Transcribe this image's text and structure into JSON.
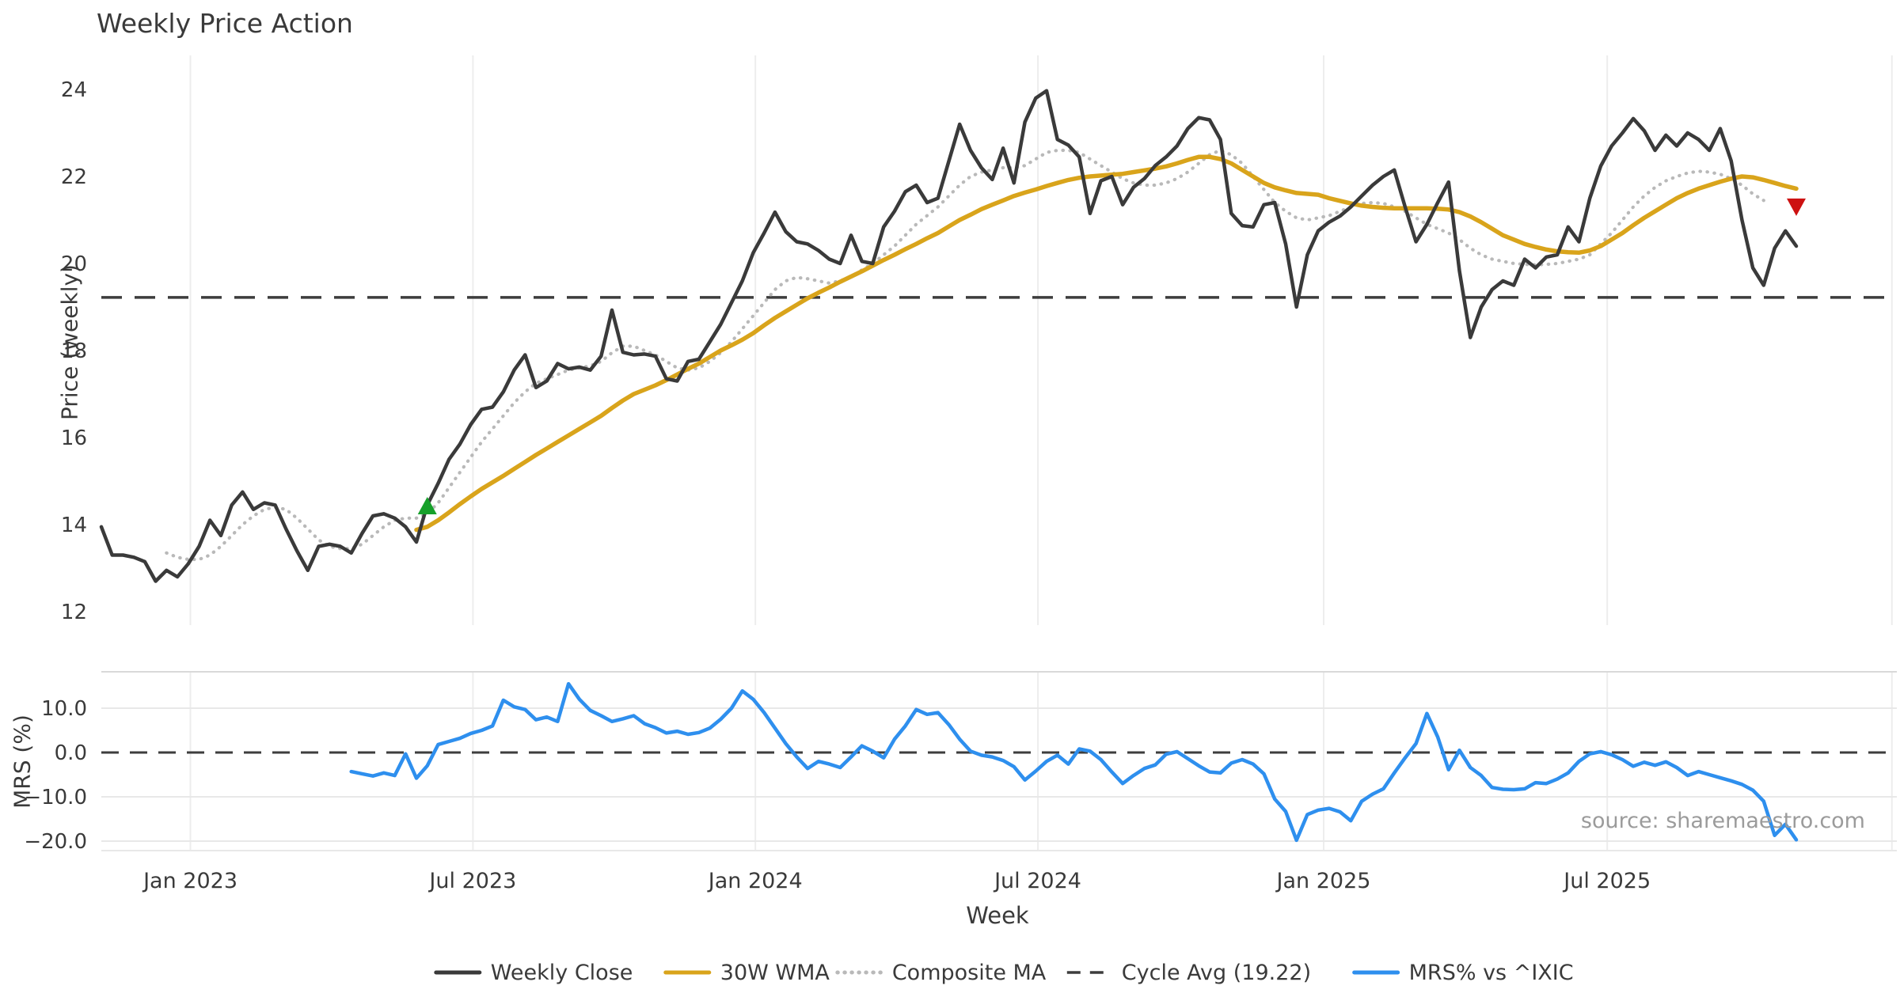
{
  "page_title": "Weekly Price Action",
  "source_note": "source: sharemaestro.com",
  "chart_data": {
    "type": "line",
    "title": "Weekly Price Action",
    "xlabel": "Week",
    "grid": "vertical-both-panels, horizontal-bottom-panel-only",
    "legend_position": "bottom-center",
    "x_axis": {
      "tick_labels": [
        "Jan 2023",
        "Jul 2023",
        "Jan 2024",
        "Jul 2024",
        "Jan 2025",
        "Jul 2025"
      ],
      "tick_week_positions": [
        8.2,
        34.2,
        60.2,
        86.2,
        112.5,
        138.6
      ],
      "extra_unlabeled_gridline_week": 164.8,
      "total_weeks": 157,
      "range_note": "weekly data, ~Nov 2022 through ~Nov 2025"
    },
    "panels": [
      {
        "id": "price",
        "ylabel": "Price (weekly)",
        "ylim": [
          11.7,
          24.35
        ],
        "yticks": [
          24,
          22,
          20,
          18,
          16,
          14,
          12
        ],
        "ytick_labels": [
          "24",
          "22",
          "20",
          "18",
          "16",
          "14",
          "12"
        ],
        "cycle_avg": 19.22,
        "series": [
          {
            "name": "Weekly Close",
            "color": "#3a3a3a",
            "style": "solid",
            "width": 4.5,
            "start_week": 0,
            "values": [
              13.95,
              13.3,
              13.3,
              13.25,
              13.15,
              12.7,
              12.95,
              12.8,
              13.1,
              13.5,
              14.1,
              13.75,
              14.45,
              14.75,
              14.35,
              14.5,
              14.45,
              13.9,
              13.4,
              12.95,
              13.5,
              13.55,
              13.5,
              13.35,
              13.8,
              14.2,
              14.25,
              14.15,
              13.95,
              13.6,
              14.45,
              14.95,
              15.5,
              15.85,
              16.3,
              16.65,
              16.7,
              17.05,
              17.55,
              17.9,
              17.15,
              17.3,
              17.7,
              17.58,
              17.62,
              17.55,
              17.87,
              18.93,
              17.96,
              17.9,
              17.92,
              17.87,
              17.35,
              17.3,
              17.75,
              17.8,
              18.2,
              18.6,
              19.1,
              19.6,
              20.25,
              20.7,
              21.18,
              20.73,
              20.5,
              20.45,
              20.3,
              20.1,
              20.0,
              20.65,
              20.05,
              20.0,
              20.84,
              21.2,
              21.65,
              21.8,
              21.4,
              21.5,
              22.35,
              23.2,
              22.6,
              22.2,
              21.93,
              22.65,
              21.85,
              23.25,
              23.8,
              23.97,
              22.85,
              22.72,
              22.45,
              21.15,
              21.9,
              22.0,
              21.35,
              21.75,
              21.95,
              22.25,
              22.45,
              22.7,
              23.1,
              23.35,
              23.3,
              22.85,
              21.15,
              20.87,
              20.84,
              21.35,
              21.4,
              20.45,
              19.0,
              20.2,
              20.75,
              20.95,
              21.09,
              21.3,
              21.55,
              21.8,
              22.0,
              22.15,
              21.3,
              20.5,
              20.9,
              21.4,
              21.87,
              19.83,
              18.3,
              19.0,
              19.4,
              19.6,
              19.5,
              20.1,
              19.9,
              20.15,
              20.2,
              20.84,
              20.5,
              21.5,
              22.24,
              22.7,
              23.0,
              23.33,
              23.05,
              22.6,
              22.95,
              22.7,
              23.0,
              22.85,
              22.6,
              23.1,
              22.36,
              21.0,
              19.9,
              19.5,
              20.35,
              20.75,
              20.4
            ]
          },
          {
            "name": "30W WMA",
            "color": "#d9a41b",
            "style": "solid",
            "width": 5.5,
            "start_week": 29,
            "values": [
              13.88,
              13.95,
              14.1,
              14.28,
              14.47,
              14.65,
              14.82,
              14.97,
              15.12,
              15.28,
              15.44,
              15.6,
              15.75,
              15.9,
              16.05,
              16.2,
              16.35,
              16.5,
              16.68,
              16.85,
              17.0,
              17.1,
              17.2,
              17.32,
              17.45,
              17.58,
              17.7,
              17.85,
              18.0,
              18.12,
              18.25,
              18.4,
              18.58,
              18.75,
              18.9,
              19.05,
              19.2,
              19.33,
              19.45,
              19.58,
              19.7,
              19.82,
              19.95,
              20.08,
              20.2,
              20.33,
              20.45,
              20.58,
              20.7,
              20.85,
              21.0,
              21.12,
              21.25,
              21.35,
              21.45,
              21.55,
              21.63,
              21.7,
              21.78,
              21.85,
              21.92,
              21.97,
              22.0,
              22.02,
              22.04,
              22.06,
              22.1,
              22.14,
              22.18,
              22.23,
              22.3,
              22.38,
              22.45,
              22.45,
              22.4,
              22.3,
              22.15,
              22.0,
              21.85,
              21.75,
              21.68,
              21.62,
              21.6,
              21.58,
              21.5,
              21.44,
              21.38,
              21.33,
              21.3,
              21.28,
              21.27,
              21.27,
              21.27,
              21.27,
              21.26,
              21.24,
              21.18,
              21.08,
              20.95,
              20.8,
              20.65,
              20.55,
              20.45,
              20.38,
              20.32,
              20.28,
              20.26,
              20.25,
              20.3,
              20.4,
              20.55,
              20.7,
              20.88,
              21.05,
              21.2,
              21.35,
              21.5,
              21.62,
              21.72,
              21.8,
              21.88,
              21.95,
              22.0,
              21.98,
              21.92,
              21.85,
              21.78,
              21.72
            ]
          },
          {
            "name": "Composite MA",
            "color": "#b9b9b9",
            "style": "dotted",
            "width": 4.2,
            "start_week": 6,
            "values": [
              13.35,
              13.25,
              13.2,
              13.2,
              13.3,
              13.5,
              13.75,
              14.0,
              14.2,
              14.35,
              14.4,
              14.35,
              14.15,
              13.9,
              13.65,
              13.5,
              13.45,
              13.45,
              13.55,
              13.75,
              13.95,
              14.1,
              14.15,
              14.15,
              14.25,
              14.5,
              14.85,
              15.2,
              15.55,
              15.9,
              16.2,
              16.5,
              16.8,
              17.05,
              17.25,
              17.35,
              17.45,
              17.55,
              17.6,
              17.65,
              17.75,
              17.95,
              18.1,
              18.1,
              18.0,
              17.9,
              17.75,
              17.6,
              17.55,
              17.6,
              17.75,
              17.95,
              18.2,
              18.5,
              18.8,
              19.1,
              19.4,
              19.6,
              19.68,
              19.65,
              19.6,
              19.55,
              19.6,
              19.7,
              19.85,
              20.0,
              20.2,
              20.4,
              20.65,
              20.9,
              21.1,
              21.3,
              21.55,
              21.8,
              22.0,
              22.1,
              22.15,
              22.2,
              22.2,
              22.25,
              22.4,
              22.55,
              22.6,
              22.6,
              22.55,
              22.4,
              22.25,
              22.1,
              21.95,
              21.85,
              21.8,
              21.8,
              21.85,
              21.95,
              22.1,
              22.3,
              22.5,
              22.6,
              22.5,
              22.3,
              22.0,
              21.7,
              21.4,
              21.2,
              21.05,
              21.0,
              21.05,
              21.1,
              21.2,
              21.3,
              21.38,
              21.4,
              21.38,
              21.3,
              21.2,
              21.05,
              20.9,
              20.8,
              20.7,
              20.55,
              20.35,
              20.2,
              20.1,
              20.05,
              20.0,
              19.98,
              19.97,
              19.98,
              20.0,
              20.05,
              20.1,
              20.2,
              20.45,
              20.7,
              21.0,
              21.3,
              21.55,
              21.75,
              21.9,
              22.0,
              22.08,
              22.12,
              22.1,
              22.05,
              21.95,
              21.8,
              21.6,
              21.45
            ]
          },
          {
            "name": "Cycle Avg (19.22)",
            "color": "#3d3d3d",
            "style": "dashed",
            "width": 3.5,
            "constant": 19.22
          }
        ],
        "markers": [
          {
            "type": "triangle-up",
            "meaning": "buy-signal",
            "color": "#16a02a",
            "week": 30,
            "value": 14.4
          },
          {
            "type": "triangle-down",
            "meaning": "sell-signal",
            "color": "#cd1111",
            "week": 156,
            "value": 21.33
          }
        ]
      },
      {
        "id": "mrs",
        "ylabel": "MRS (%)",
        "ylim": [
          -22.5,
          18.2
        ],
        "yticks": [
          10,
          0,
          -10,
          -20
        ],
        "ytick_labels": [
          "10.0",
          "0.0",
          "−10.0",
          "−20.0"
        ],
        "series": [
          {
            "name": "MRS% vs ^IXIC",
            "color": "#2e8fee",
            "style": "solid",
            "width": 4.5,
            "start_week": 23,
            "values": [
              -4.3,
              -4.8,
              -5.3,
              -4.6,
              -5.2,
              -0.3,
              -5.8,
              -3.0,
              1.8,
              2.5,
              3.2,
              4.3,
              5.0,
              6.0,
              11.8,
              10.3,
              9.7,
              7.4,
              8.0,
              7.0,
              15.5,
              12.0,
              9.5,
              8.3,
              7.0,
              7.6,
              8.3,
              6.5,
              5.6,
              4.4,
              4.8,
              4.1,
              4.5,
              5.5,
              7.5,
              10.0,
              13.9,
              12.0,
              9.0,
              5.5,
              2.0,
              -1.0,
              -3.6,
              -2.0,
              -2.6,
              -3.4,
              -1.0,
              1.5,
              0.3,
              -1.2,
              3.0,
              6.0,
              9.7,
              8.6,
              9.0,
              6.3,
              3.0,
              0.3,
              -0.6,
              -1.0,
              -1.8,
              -3.2,
              -6.2,
              -4.2,
              -2.0,
              -0.6,
              -2.6,
              0.8,
              0.3,
              -1.6,
              -4.4,
              -7.0,
              -5.2,
              -3.6,
              -2.8,
              -0.4,
              0.2,
              -1.4,
              -3.0,
              -4.4,
              -4.6,
              -2.4,
              -1.6,
              -2.6,
              -4.8,
              -10.5,
              -13.3,
              -19.8,
              -14.0,
              -13.0,
              -12.6,
              -13.4,
              -15.4,
              -11.0,
              -9.4,
              -8.2,
              -4.6,
              -1.2,
              2.0,
              8.8,
              3.5,
              -3.9,
              0.5,
              -3.4,
              -5.2,
              -7.9,
              -8.3,
              -8.4,
              -8.2,
              -6.8,
              -7.0,
              -6.0,
              -4.6,
              -2.0,
              -0.3,
              0.2,
              -0.5,
              -1.6,
              -3.1,
              -2.2,
              -2.9,
              -2.1,
              -3.4,
              -5.2,
              -4.3,
              -5.0,
              -5.7,
              -6.4,
              -7.2,
              -8.5,
              -11.0,
              -18.7,
              -16.2,
              -19.7
            ]
          },
          {
            "name": "zero line",
            "color": "#3d3d3d",
            "style": "dashed",
            "width": 3,
            "constant": 0
          }
        ]
      }
    ],
    "legend": [
      {
        "label": "Weekly Close",
        "color": "#3a3a3a",
        "style": "solid"
      },
      {
        "label": "30W WMA",
        "color": "#d9a41b",
        "style": "solid"
      },
      {
        "label": "Composite MA",
        "color": "#b9b9b9",
        "style": "dotted"
      },
      {
        "label": "Cycle Avg (19.22)",
        "color": "#3d3d3d",
        "style": "dashed"
      },
      {
        "label": "MRS% vs ^IXIC",
        "color": "#2e8fee",
        "style": "solid"
      }
    ],
    "colors": {
      "background": "#ffffff",
      "grid_vertical": "#ededed",
      "grid_horizontal": "#e8e8e8",
      "panel_divider": "#d9d9d9",
      "tick_text": "#3a3a3a",
      "source_text": "#9b9b9b",
      "buy_marker": "#16a02a",
      "sell_marker": "#cd1111"
    }
  }
}
